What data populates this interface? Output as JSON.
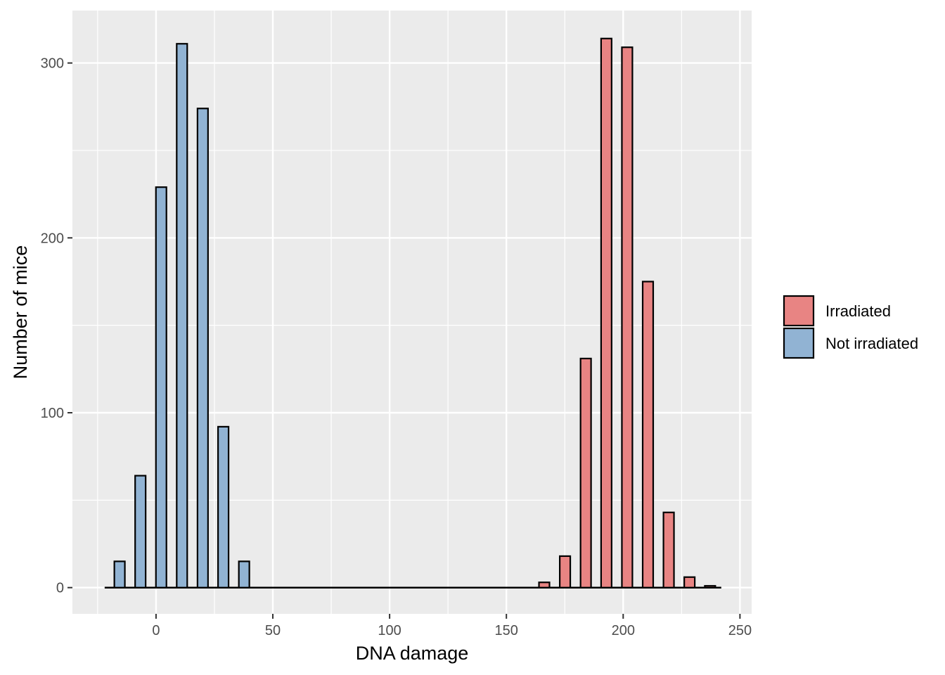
{
  "chart_data": {
    "type": "bar",
    "xlabel": "DNA damage",
    "ylabel": "Number of mice",
    "xlim": [
      -35.8,
      255
    ],
    "ylim": [
      -15,
      330
    ],
    "x_ticks": [
      0,
      50,
      100,
      150,
      200,
      250
    ],
    "y_ticks": [
      0,
      100,
      200,
      300
    ],
    "grid": true,
    "legend_position": "right",
    "bin_width": 8.9,
    "bar_width": 4.5,
    "baseline_range": [
      -22,
      242
    ],
    "series": [
      {
        "name": "Irradiated",
        "color": "#E88483",
        "x": [
          166.2,
          175.1,
          184.0,
          192.8,
          201.7,
          210.6,
          219.5,
          228.4,
          237.2
        ],
        "values": [
          3,
          18,
          131,
          314,
          309,
          175,
          43,
          6,
          1
        ]
      },
      {
        "name": "Not irradiated",
        "color": "#91B3D3",
        "x": [
          -15.6,
          -6.7,
          2.2,
          11.1,
          20.0,
          28.8,
          37.7
        ],
        "values": [
          15,
          64,
          229,
          311,
          274,
          92,
          15
        ]
      }
    ]
  }
}
